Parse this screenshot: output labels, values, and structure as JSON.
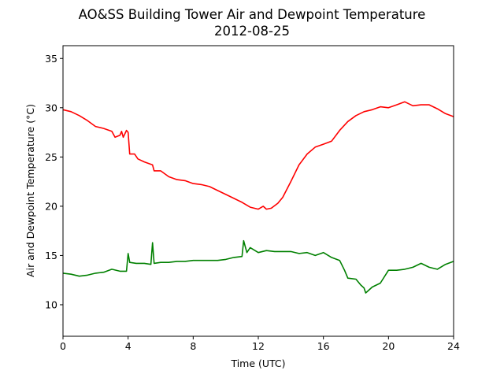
{
  "chart_data": {
    "type": "line",
    "title": "AO&SS Building Tower Air and Dewpoint Temperature",
    "subtitle": "2012-08-25",
    "xlabel": "Time (UTC)",
    "ylabel": "Air and Dewpoint Temperature (°C)",
    "xlim": [
      0,
      24
    ],
    "ylim": [
      6.8,
      36.3
    ],
    "xticks": [
      0,
      4,
      8,
      12,
      16,
      20,
      24
    ],
    "xtick_labels": [
      "0",
      "4",
      "8",
      "12",
      "16",
      "20",
      "24"
    ],
    "yticks": [
      10,
      15,
      20,
      25,
      30,
      35
    ],
    "ytick_labels": [
      "10",
      "15",
      "20",
      "25",
      "30",
      "35"
    ],
    "grid": false,
    "legend": "none",
    "series": [
      {
        "color": "#ff0000",
        "points": [
          [
            0,
            29.8
          ],
          [
            0.5,
            29.6
          ],
          [
            1.0,
            29.2
          ],
          [
            1.5,
            28.7
          ],
          [
            2.0,
            28.1
          ],
          [
            2.5,
            27.9
          ],
          [
            3.0,
            27.6
          ],
          [
            3.2,
            27.0
          ],
          [
            3.5,
            27.2
          ],
          [
            3.6,
            27.6
          ],
          [
            3.7,
            27.0
          ],
          [
            3.9,
            27.7
          ],
          [
            4.0,
            27.5
          ],
          [
            4.1,
            25.3
          ],
          [
            4.4,
            25.3
          ],
          [
            4.6,
            24.8
          ],
          [
            5.0,
            24.5
          ],
          [
            5.5,
            24.2
          ],
          [
            5.6,
            23.6
          ],
          [
            6.0,
            23.6
          ],
          [
            6.5,
            23.0
          ],
          [
            7.0,
            22.7
          ],
          [
            7.5,
            22.6
          ],
          [
            8.0,
            22.3
          ],
          [
            8.5,
            22.2
          ],
          [
            9.0,
            22.0
          ],
          [
            9.5,
            21.6
          ],
          [
            10.0,
            21.2
          ],
          [
            10.5,
            20.8
          ],
          [
            11.0,
            20.4
          ],
          [
            11.5,
            19.9
          ],
          [
            12.0,
            19.7
          ],
          [
            12.3,
            20.0
          ],
          [
            12.5,
            19.7
          ],
          [
            12.8,
            19.8
          ],
          [
            13.2,
            20.3
          ],
          [
            13.5,
            20.9
          ],
          [
            14.0,
            22.5
          ],
          [
            14.5,
            24.2
          ],
          [
            15.0,
            25.3
          ],
          [
            15.5,
            26.0
          ],
          [
            16.0,
            26.3
          ],
          [
            16.5,
            26.6
          ],
          [
            17.0,
            27.7
          ],
          [
            17.5,
            28.6
          ],
          [
            18.0,
            29.2
          ],
          [
            18.5,
            29.6
          ],
          [
            19.0,
            29.8
          ],
          [
            19.5,
            30.1
          ],
          [
            20.0,
            30.0
          ],
          [
            20.5,
            30.3
          ],
          [
            21.0,
            30.6
          ],
          [
            21.5,
            30.2
          ],
          [
            22.0,
            30.3
          ],
          [
            22.5,
            30.3
          ],
          [
            23.0,
            29.9
          ],
          [
            23.5,
            29.4
          ],
          [
            24.0,
            29.1
          ]
        ]
      },
      {
        "color": "#008000",
        "points": [
          [
            0,
            13.2
          ],
          [
            0.5,
            13.1
          ],
          [
            1.0,
            12.9
          ],
          [
            1.5,
            13.0
          ],
          [
            2.0,
            13.2
          ],
          [
            2.5,
            13.3
          ],
          [
            3.0,
            13.6
          ],
          [
            3.5,
            13.4
          ],
          [
            3.9,
            13.4
          ],
          [
            4.0,
            15.2
          ],
          [
            4.1,
            14.3
          ],
          [
            4.5,
            14.2
          ],
          [
            5.0,
            14.2
          ],
          [
            5.4,
            14.1
          ],
          [
            5.5,
            16.3
          ],
          [
            5.6,
            14.2
          ],
          [
            6.0,
            14.3
          ],
          [
            6.5,
            14.3
          ],
          [
            7.0,
            14.4
          ],
          [
            7.5,
            14.4
          ],
          [
            8.0,
            14.5
          ],
          [
            8.5,
            14.5
          ],
          [
            9.0,
            14.5
          ],
          [
            9.5,
            14.5
          ],
          [
            10.0,
            14.6
          ],
          [
            10.5,
            14.8
          ],
          [
            11.0,
            14.9
          ],
          [
            11.1,
            16.5
          ],
          [
            11.3,
            15.3
          ],
          [
            11.5,
            15.8
          ],
          [
            12.0,
            15.3
          ],
          [
            12.5,
            15.5
          ],
          [
            13.0,
            15.4
          ],
          [
            13.5,
            15.4
          ],
          [
            14.0,
            15.4
          ],
          [
            14.5,
            15.2
          ],
          [
            15.0,
            15.3
          ],
          [
            15.5,
            15.0
          ],
          [
            16.0,
            15.3
          ],
          [
            16.5,
            14.8
          ],
          [
            17.0,
            14.5
          ],
          [
            17.3,
            13.5
          ],
          [
            17.5,
            12.7
          ],
          [
            18.0,
            12.6
          ],
          [
            18.3,
            12.0
          ],
          [
            18.5,
            11.7
          ],
          [
            18.6,
            11.2
          ],
          [
            19.0,
            11.8
          ],
          [
            19.5,
            12.2
          ],
          [
            20.0,
            13.5
          ],
          [
            20.5,
            13.5
          ],
          [
            21.0,
            13.6
          ],
          [
            21.5,
            13.8
          ],
          [
            22.0,
            14.2
          ],
          [
            22.5,
            13.8
          ],
          [
            23.0,
            13.6
          ],
          [
            23.5,
            14.1
          ],
          [
            24.0,
            14.4
          ]
        ]
      }
    ]
  }
}
